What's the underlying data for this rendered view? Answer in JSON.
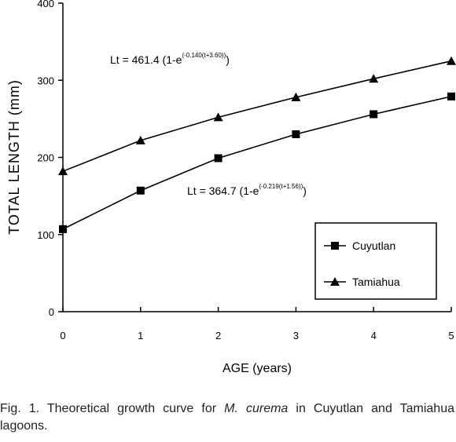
{
  "chart_data": {
    "type": "line",
    "xlabel": "AGE (years)",
    "ylabel": "TOTAL LENGTH (mm)",
    "xlim": [
      0,
      5
    ],
    "ylim": [
      0,
      400
    ],
    "x_ticks": [
      "0",
      "1",
      "2",
      "3",
      "4",
      "5"
    ],
    "y_ticks": [
      "0",
      "100",
      "200",
      "300",
      "400"
    ],
    "x": [
      0,
      1,
      2,
      3,
      4,
      5
    ],
    "series": [
      {
        "name": "Cuyutlan",
        "marker": "square",
        "values": [
          107,
          157,
          199,
          230,
          256,
          279
        ]
      },
      {
        "name": "Tamiahua",
        "marker": "triangle",
        "values": [
          182,
          222,
          252,
          278,
          302,
          325
        ]
      }
    ],
    "grid": false,
    "legend_position": "bottom-right",
    "annotations": [
      {
        "series": "Tamiahua",
        "base": "Lt = 461.4 (1-e",
        "sup": "(-0.140(t+3.60))",
        "tail": ")"
      },
      {
        "series": "Cuyutlan",
        "base": "Lt = 364.7 (1-e",
        "sup": "(-0.219(t+1.56))",
        "tail": ")"
      }
    ]
  },
  "caption": {
    "prefix": "Fig. 1. Theoretical growth curve for ",
    "species": "M. curema",
    "suffix": " in Cuyutlan and Tamiahua lagoons."
  }
}
